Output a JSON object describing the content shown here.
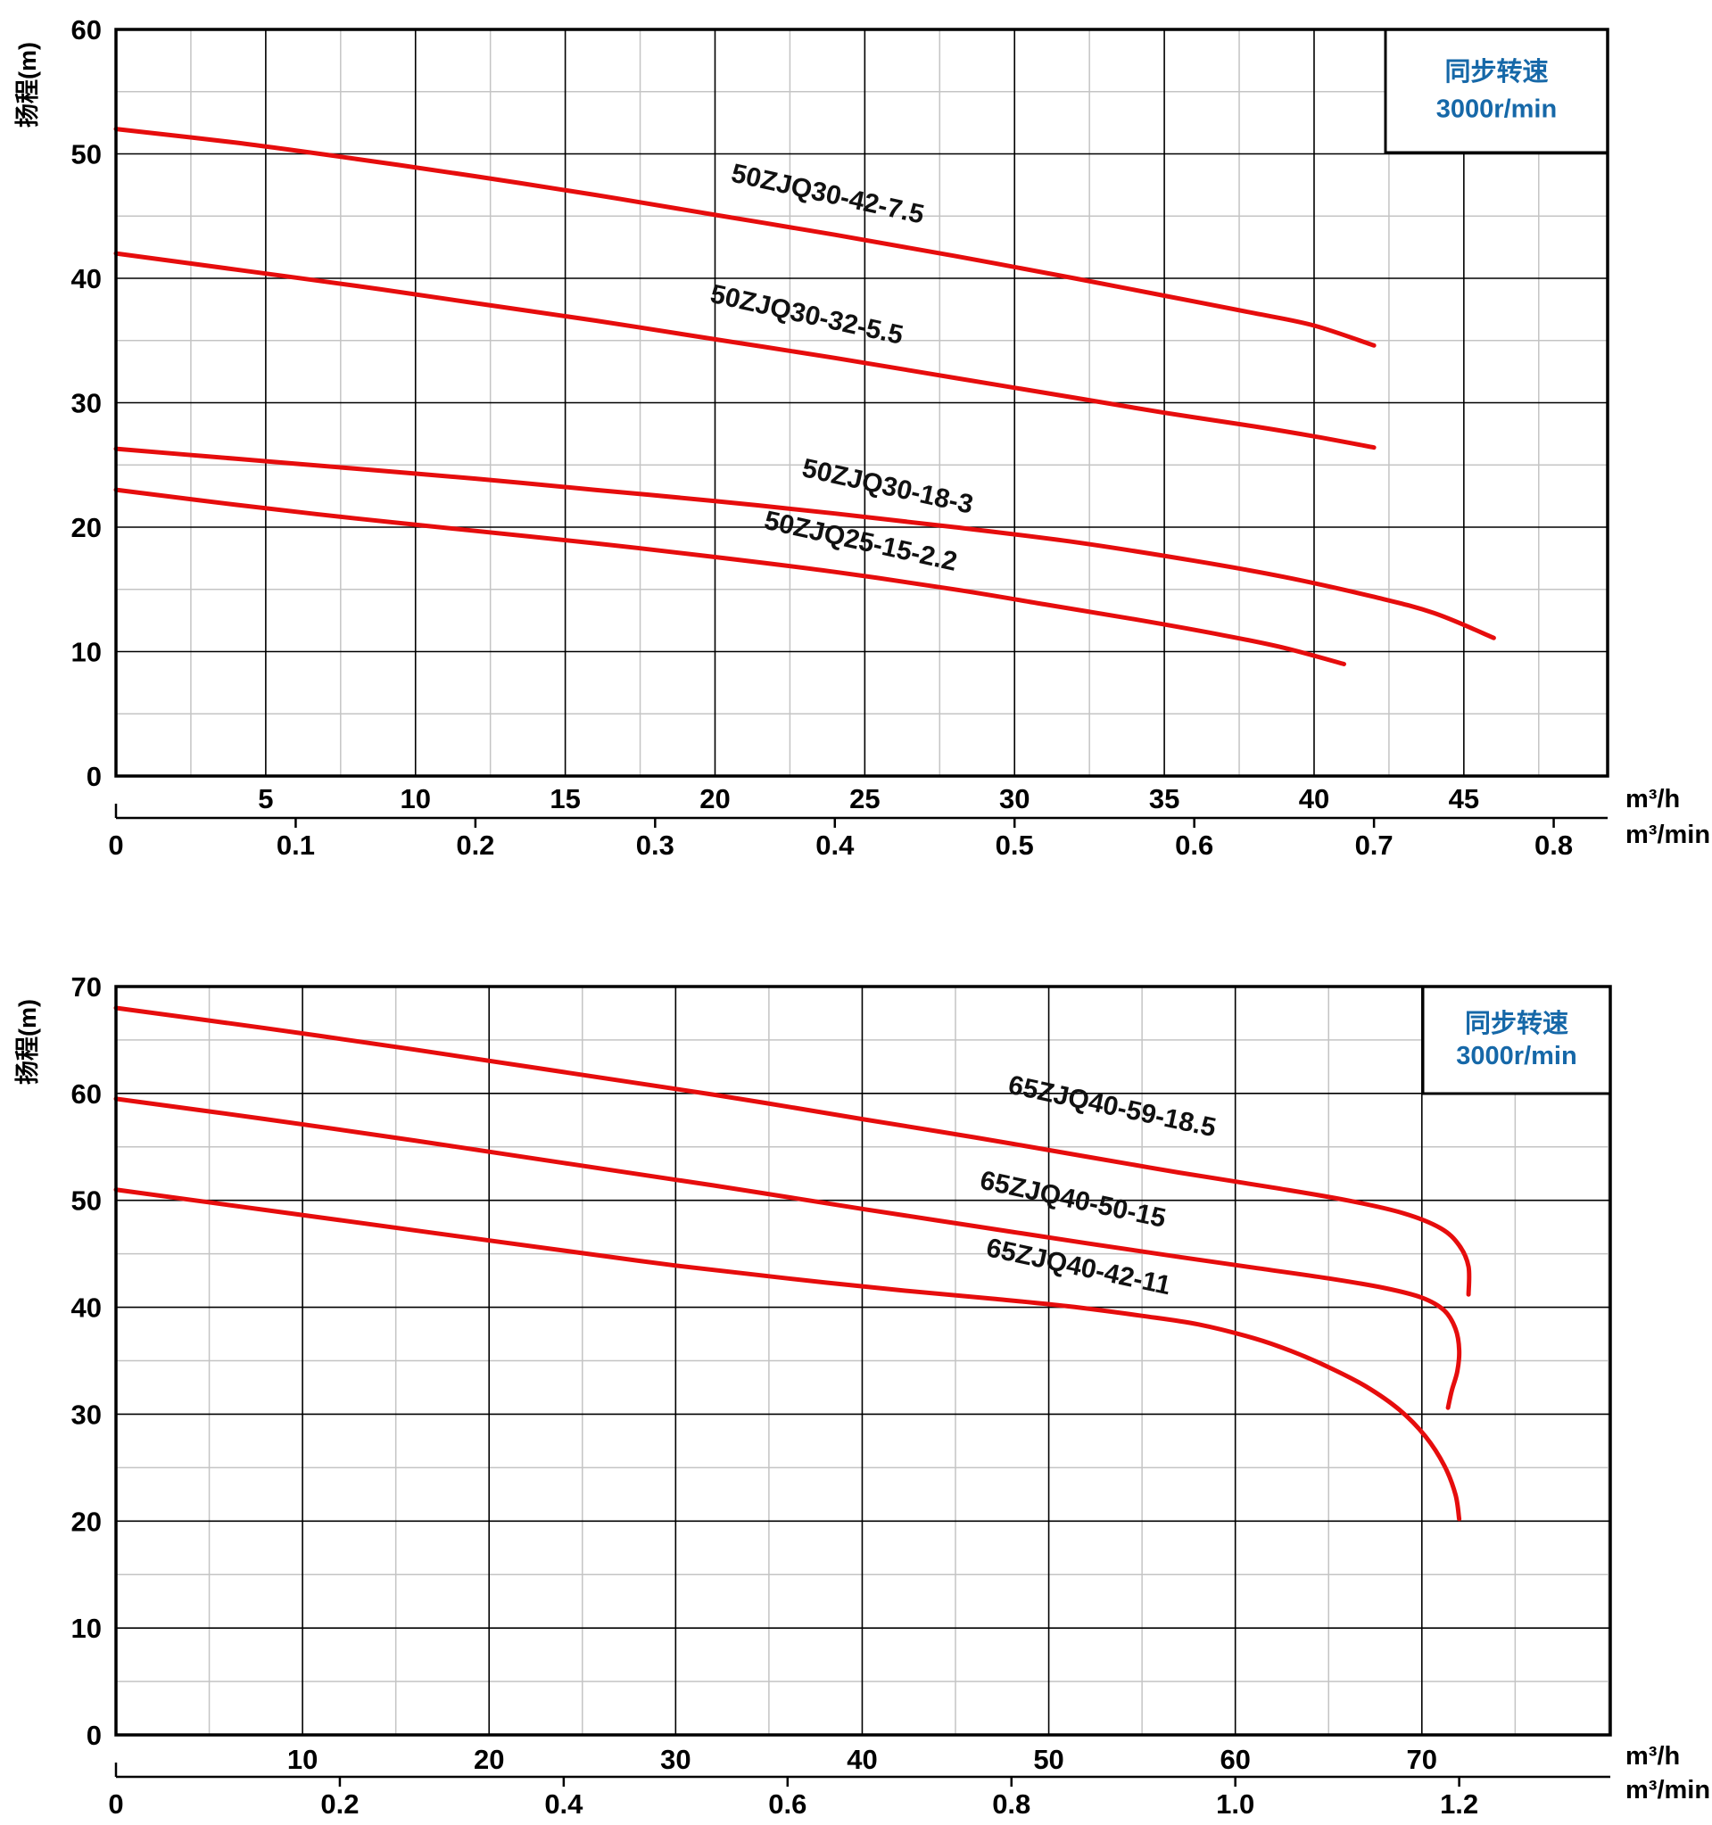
{
  "chart_data": [
    {
      "type": "line",
      "title": "",
      "y_axis": {
        "label": "扬程(m)",
        "min": 0,
        "max": 60,
        "major_ticks": [
          0,
          10,
          20,
          30,
          40,
          50,
          60
        ],
        "minor_step": 5,
        "grid": true
      },
      "x_axis": {
        "unit": "m³/h",
        "min": 0,
        "max": 49.8,
        "major_ticks": [
          5,
          10,
          15,
          20,
          25,
          30,
          35,
          40,
          45
        ],
        "minor_step": 2.5,
        "grid": true
      },
      "x_axis2": {
        "unit": "m³/min",
        "ticks": [
          "0",
          "0.1",
          "0.2",
          "0.3",
          "0.4",
          "0.5",
          "0.6",
          "0.7",
          "0.8"
        ],
        "values": [
          0,
          0.1,
          0.2,
          0.3,
          0.4,
          0.5,
          0.6,
          0.7,
          0.8
        ],
        "to_primary_factor": 60
      },
      "legend": {
        "line1": "同步转速",
        "line2": "3000r/min",
        "position": "top-right",
        "text_color": "#1668a8"
      },
      "curve_color": "#e60d0d",
      "series": [
        {
          "name": "50ZJQ30-42-7.5",
          "points": [
            [
              0,
              52
            ],
            [
              4,
              50.9
            ],
            [
              8,
              49.6
            ],
            [
              12,
              48.2
            ],
            [
              16,
              46.7
            ],
            [
              20,
              45.1
            ],
            [
              24,
              43.5
            ],
            [
              28,
              41.8
            ],
            [
              32,
              40
            ],
            [
              35,
              38.6
            ],
            [
              38,
              37.2
            ],
            [
              40,
              36.2
            ],
            [
              42,
              34.6
            ]
          ],
          "label": {
            "x": 23.7,
            "y": 46.1,
            "angle": 12.5
          }
        },
        {
          "name": "50ZJQ30-32-5.5",
          "points": [
            [
              0,
              42
            ],
            [
              4,
              40.7
            ],
            [
              8,
              39.4
            ],
            [
              12,
              38
            ],
            [
              16,
              36.6
            ],
            [
              20,
              35.1
            ],
            [
              24,
              33.6
            ],
            [
              28,
              32
            ],
            [
              32,
              30.4
            ],
            [
              35,
              29.2
            ],
            [
              38,
              28.1
            ],
            [
              40,
              27.3
            ],
            [
              42,
              26.4
            ]
          ],
          "label": {
            "x": 23.0,
            "y": 36.4,
            "angle": 12.5
          }
        },
        {
          "name": "50ZJQ30-18-3",
          "points": [
            [
              0,
              26.3
            ],
            [
              4,
              25.5
            ],
            [
              8,
              24.7
            ],
            [
              12,
              23.9
            ],
            [
              16,
              23
            ],
            [
              20,
              22.1
            ],
            [
              24,
              21.1
            ],
            [
              28,
              20
            ],
            [
              32,
              18.8
            ],
            [
              36,
              17.3
            ],
            [
              39,
              16
            ],
            [
              42,
              14.4
            ],
            [
              44,
              13.1
            ],
            [
              46,
              11.1
            ]
          ],
          "label": {
            "x": 25.7,
            "y": 22.6,
            "angle": 12.5
          }
        },
        {
          "name": "50ZJQ25-15-2.2",
          "points": [
            [
              0,
              23
            ],
            [
              4,
              21.8
            ],
            [
              8,
              20.7
            ],
            [
              12,
              19.7
            ],
            [
              16,
              18.7
            ],
            [
              20,
              17.6
            ],
            [
              24,
              16.4
            ],
            [
              28,
              15
            ],
            [
              31,
              13.8
            ],
            [
              34,
              12.6
            ],
            [
              37,
              11.3
            ],
            [
              39,
              10.3
            ],
            [
              41,
              9
            ]
          ],
          "label": {
            "x": 24.8,
            "y": 18.2,
            "angle": 12.5
          }
        }
      ]
    },
    {
      "type": "line",
      "title": "",
      "y_axis": {
        "label": "扬程(m)",
        "min": 0,
        "max": 70,
        "major_ticks": [
          0,
          10,
          20,
          30,
          40,
          50,
          60,
          70
        ],
        "minor_step": 5,
        "grid": true
      },
      "x_axis": {
        "unit": "m³/h",
        "min": 0,
        "max": 80.1,
        "major_ticks": [
          10,
          20,
          30,
          40,
          50,
          60,
          70
        ],
        "minor_step": 5,
        "grid": true
      },
      "x_axis2": {
        "unit": "m³/min",
        "ticks": [
          "0",
          "0.2",
          "0.4",
          "0.6",
          "0.8",
          "1.0",
          "1.2"
        ],
        "values": [
          0,
          0.2,
          0.4,
          0.6,
          0.8,
          1.0,
          1.2
        ],
        "to_primary_factor": 60
      },
      "legend": {
        "line1": "同步转速",
        "line2": "3000r/min",
        "position": "top-right",
        "text_color": "#1668a8"
      },
      "curve_color": "#e60d0d",
      "series": [
        {
          "name": "65ZJQ40-59-18.5",
          "points": [
            [
              0,
              68
            ],
            [
              8,
              66.1
            ],
            [
              16,
              64.1
            ],
            [
              24,
              62
            ],
            [
              32,
              59.9
            ],
            [
              40,
              57.6
            ],
            [
              46,
              55.9
            ],
            [
              52,
              54.1
            ],
            [
              57,
              52.6
            ],
            [
              62,
              51.2
            ],
            [
              66,
              50
            ],
            [
              69,
              48.8
            ],
            [
              71,
              47.4
            ],
            [
              72,
              45.8
            ],
            [
              72.5,
              43.8
            ],
            [
              72.5,
              41.2
            ]
          ],
          "label": {
            "x": 53.3,
            "y": 58.0,
            "angle": 12
          }
        },
        {
          "name": "65ZJQ40-50-15",
          "points": [
            [
              0,
              59.5
            ],
            [
              8,
              57.6
            ],
            [
              16,
              55.6
            ],
            [
              24,
              53.5
            ],
            [
              32,
              51.4
            ],
            [
              40,
              49.2
            ],
            [
              46,
              47.6
            ],
            [
              52,
              46
            ],
            [
              57,
              44.7
            ],
            [
              61,
              43.7
            ],
            [
              65,
              42.7
            ],
            [
              68,
              41.8
            ],
            [
              70,
              40.9
            ],
            [
              71.2,
              39.7
            ],
            [
              71.8,
              38
            ],
            [
              72,
              36
            ],
            [
              71.9,
              34
            ],
            [
              71.6,
              32.2
            ],
            [
              71.4,
              30.6
            ]
          ],
          "label": {
            "x": 51.2,
            "y": 49.3,
            "angle": 12
          }
        },
        {
          "name": "65ZJQ40-42-11",
          "points": [
            [
              0,
              51
            ],
            [
              8,
              49.1
            ],
            [
              16,
              47.2
            ],
            [
              24,
              45.3
            ],
            [
              30,
              43.9
            ],
            [
              36,
              42.7
            ],
            [
              42,
              41.6
            ],
            [
              47,
              40.8
            ],
            [
              51,
              40.1
            ],
            [
              55,
              39.2
            ],
            [
              58,
              38.4
            ],
            [
              61,
              37.1
            ],
            [
              63,
              35.9
            ],
            [
              65,
              34.4
            ],
            [
              67,
              32.6
            ],
            [
              68.8,
              30.4
            ],
            [
              70.2,
              27.9
            ],
            [
              71.2,
              25.2
            ],
            [
              71.8,
              22.5
            ],
            [
              72,
              20.2
            ]
          ],
          "label": {
            "x": 51.5,
            "y": 43.0,
            "angle": 12
          }
        }
      ]
    }
  ],
  "style": {
    "grid_major_color": "#000000",
    "grid_minor_color": "#c4c4c4",
    "border_color": "#000000",
    "tick_label_color": "#000000",
    "curve_label_color": "#111111",
    "legend_text_color": "#1668a8",
    "curve_color": "#e60d0d",
    "background": "#ffffff"
  }
}
